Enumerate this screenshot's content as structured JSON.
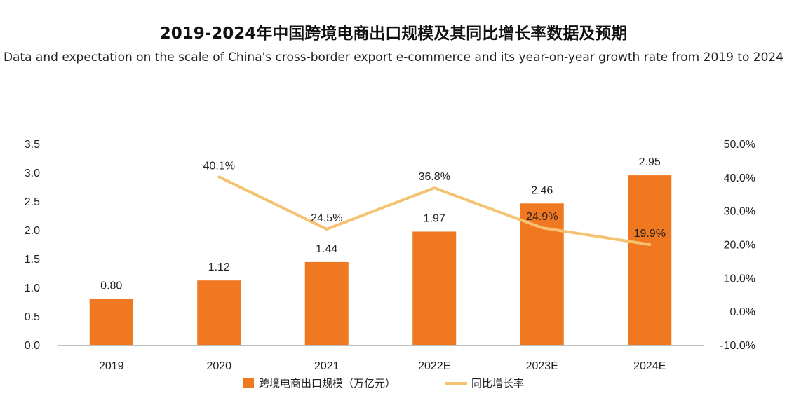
{
  "chart_data": {
    "type": "bar",
    "title": "2019-2024年中国跨境电商出口规模及其同比增长率数据及预期",
    "subtitle": "Data and expectation on the scale of China's cross-border export e-commerce and its year-on-year growth rate from 2019 to 2024",
    "categories": [
      "2019",
      "2020",
      "2021",
      "2022E",
      "2023E",
      "2024E"
    ],
    "series": [
      {
        "name": "跨境电商出口规模（万亿元）",
        "type": "bar",
        "axis": "left",
        "color": "#F07820",
        "values": [
          0.8,
          1.12,
          1.44,
          1.97,
          2.46,
          2.95
        ],
        "labels": [
          "0.80",
          "1.12",
          "1.44",
          "1.97",
          "2.46",
          "2.95"
        ]
      },
      {
        "name": "同比增长率",
        "type": "line",
        "axis": "right",
        "color": "#F5C272",
        "values": [
          null,
          40.1,
          24.5,
          36.8,
          24.9,
          19.9
        ],
        "labels": [
          "",
          "40.1%",
          "24.5%",
          "36.8%",
          "24.9%",
          "19.9%"
        ]
      }
    ],
    "y_left": {
      "min": 0,
      "max": 3.5,
      "ticks": [
        "0.0",
        "0.5",
        "1.0",
        "1.5",
        "2.0",
        "2.5",
        "3.0",
        "3.5"
      ]
    },
    "y_right": {
      "min": -10,
      "max": 50,
      "ticks": [
        "-10.0%",
        "0.0%",
        "10.0%",
        "20.0%",
        "30.0%",
        "40.0%",
        "50.0%"
      ]
    },
    "legend_position": "bottom",
    "grid": false
  }
}
